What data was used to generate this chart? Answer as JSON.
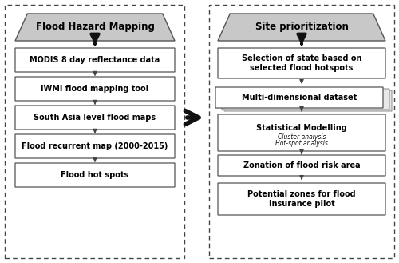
{
  "left_panel_title": "Flood Hazard Mapping",
  "left_boxes": [
    "MODIS 8 day reflectance data",
    "IWMI flood mapping tool",
    "South Asia level flood maps",
    "Flood recurrent map (2000-2015)",
    "Flood hot spots"
  ],
  "right_panel_title": "Site prioritization",
  "right_boxes_plain": [
    "Selection of state based on\nselected flood hotspots",
    "Multi-dimensional dataset",
    "Statistical Modelling",
    "Zonation of flood risk area",
    "Potential zones for flood\ninsurance pilot"
  ],
  "stat_mod_sub": [
    "Cluster analysis",
    "Hot-spot analysis"
  ],
  "bg_color": "#ffffff",
  "box_fill_title": "#c8c8c8",
  "box_fill_white": "#ffffff",
  "arrow_color": "#111111",
  "dashed_border_color": "#444444",
  "figsize": [
    5.0,
    3.29
  ],
  "dpi": 100
}
